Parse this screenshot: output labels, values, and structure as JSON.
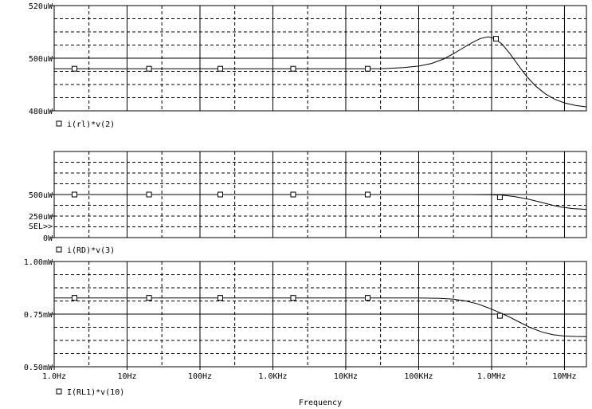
{
  "window": {
    "x_axis_title": "Frequency"
  },
  "x_axis": {
    "scale": "log",
    "range": [
      1,
      20000000
    ],
    "ticks": [
      {
        "value": 1,
        "label": "1.0Hz"
      },
      {
        "value": 10,
        "label": "10Hz"
      },
      {
        "value": 100,
        "label": "100Hz"
      },
      {
        "value": 1000,
        "label": "1.0KHz"
      },
      {
        "value": 10000,
        "label": "10KHz"
      },
      {
        "value": 100000,
        "label": "100KHz"
      },
      {
        "value": 1000000,
        "label": "1.0MHz"
      },
      {
        "value": 10000000,
        "label": "10MHz"
      }
    ]
  },
  "chart_data": [
    {
      "type": "line",
      "x_scale": "log",
      "ylim": [
        480,
        520
      ],
      "yticks": [
        {
          "value": 520,
          "label": "520uW"
        },
        {
          "value": 500,
          "label": "500uW"
        },
        {
          "value": 480,
          "label": "480uW"
        }
      ],
      "grid": true,
      "sel_marker": "",
      "series": [
        {
          "name": "i(rl)*v(2)",
          "x": [
            1,
            10,
            100,
            1000,
            10000,
            30000,
            60000,
            100000,
            150000,
            220000,
            300000,
            400000,
            550000,
            700000,
            900000,
            1100000,
            1400000,
            1800000,
            2300000,
            3000000,
            4000000,
            5500000,
            7500000,
            10000000,
            14000000,
            20000000
          ],
          "values": [
            496,
            496,
            496,
            496,
            496,
            496,
            496.4,
            497,
            498,
            499.7,
            501.7,
            503.8,
            506,
            507.5,
            508.1,
            507.5,
            505.3,
            501.6,
            497.5,
            493.2,
            489.5,
            486.4,
            484.3,
            483,
            482.1,
            481.5
          ]
        },
        {
          "name": "",
          "x": [
            1,
            20000000
          ],
          "values": [
            500,
            500
          ]
        }
      ],
      "markers": {
        "x": [
          1.9,
          20,
          190,
          1900,
          20000,
          1150000
        ],
        "values": [
          496,
          496,
          496,
          496,
          496,
          507.4
        ]
      }
    },
    {
      "type": "line",
      "x_scale": "log",
      "ylim": [
        0,
        1000
      ],
      "yticks": [
        {
          "value": 500,
          "label": "500uW"
        },
        {
          "value": 250,
          "label": "250uW"
        },
        {
          "value": 0,
          "label": "0W"
        }
      ],
      "grid": true,
      "sel_marker": "SEL>>",
      "series": [
        {
          "name": "i(RD)*v(3)",
          "x": [
            1,
            10,
            100,
            1000,
            10000,
            100000,
            500000,
            1000000,
            1400000,
            2000000,
            3000000,
            4500000,
            6500000,
            9000000,
            13000000,
            20000000
          ],
          "values": [
            500,
            500,
            500,
            500,
            500,
            500,
            500,
            498,
            492,
            478,
            451,
            416,
            381,
            354,
            337,
            328
          ]
        },
        {
          "name": "",
          "x": [
            1,
            20000000
          ],
          "values": [
            500,
            500
          ]
        }
      ],
      "markers": {
        "x": [
          1.9,
          20,
          190,
          1900,
          20000,
          1300000
        ],
        "values": [
          500,
          500,
          500,
          500,
          500,
          468
        ]
      }
    },
    {
      "type": "line",
      "x_scale": "log",
      "ylim": [
        0.5,
        1.0
      ],
      "yticks": [
        {
          "value": 1.0,
          "label": "1.00mW"
        },
        {
          "value": 0.75,
          "label": "0.75mW"
        },
        {
          "value": 0.5,
          "label": "0.50mW"
        }
      ],
      "grid": true,
      "sel_marker": "",
      "series": [
        {
          "name": "I(RL1)*v(10)",
          "x": [
            1,
            10,
            100,
            1000,
            10000,
            100000,
            200000,
            300000,
            450000,
            650000,
            900000,
            1200000,
            1700000,
            2400000,
            3400000,
            5000000,
            7000000,
            10000000,
            14000000,
            20000000
          ],
          "values": [
            0.827,
            0.827,
            0.827,
            0.827,
            0.827,
            0.827,
            0.825,
            0.821,
            0.812,
            0.798,
            0.78,
            0.762,
            0.739,
            0.712,
            0.686,
            0.664,
            0.652,
            0.646,
            0.644,
            0.643
          ]
        },
        {
          "name": "",
          "x": [
            1,
            20000000
          ],
          "values": [
            0.75,
            0.75
          ]
        }
      ],
      "markers": {
        "x": [
          1.9,
          20,
          190,
          1900,
          20000,
          1300000
        ],
        "values": [
          0.827,
          0.827,
          0.827,
          0.827,
          0.827,
          0.742
        ]
      }
    }
  ]
}
